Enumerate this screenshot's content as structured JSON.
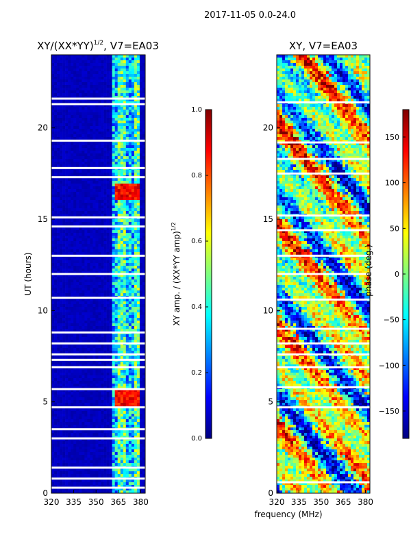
{
  "figure": {
    "suptitle": "2017-11-05 0.0-24.0",
    "xlabel": "frequency (MHz)"
  },
  "colors": {
    "jet": [
      "#000080",
      "#0000ff",
      "#0080ff",
      "#00ffff",
      "#7fff7f",
      "#ffff00",
      "#ff8000",
      "#ff0000",
      "#800000"
    ],
    "background": "#ffffff",
    "axis": "#000000",
    "flag_gap": "#ffffff"
  },
  "chart_data": [
    {
      "type": "heatmap",
      "title_main": "XY/(XX*YY)",
      "title_sup": "1/2",
      "title_rest": ", V7=EA03",
      "ylabel": "UT (hours)",
      "xlim": [
        320,
        383
      ],
      "ylim": [
        0,
        24
      ],
      "xticks": [
        320,
        335,
        350,
        365,
        380
      ],
      "yticks": [
        0,
        5,
        10,
        15,
        20
      ],
      "colorbar": {
        "label": "XY amp. / (XX*YY amp)",
        "label_sup": "1/2",
        "range": [
          0.0,
          1.0
        ],
        "ticks": [
          "0.0",
          "0.2",
          "0.4",
          "0.6",
          "0.8",
          "1.0"
        ]
      },
      "active_band_mhz": [
        360,
        380
      ],
      "hot_spot_hours": [
        16.5,
        5.2
      ],
      "flagged_hours": [
        21.3,
        21.6,
        19.3,
        17.8,
        17.3,
        15.1,
        14.6,
        13.0,
        12.0,
        10.7,
        8.8,
        8.2,
        7.6,
        7.3,
        6.9,
        5.7,
        4.7,
        3.5,
        3.0,
        1.4,
        0.8,
        0.3
      ]
    },
    {
      "type": "heatmap",
      "title_main": "XY, V7=EA03",
      "ylabel": "",
      "xlim": [
        320,
        383
      ],
      "ylim": [
        0,
        24
      ],
      "xticks": [
        320,
        335,
        350,
        365,
        380
      ],
      "yticks": [
        0,
        5,
        10,
        15,
        20
      ],
      "colorbar": {
        "label": "phase (deg.)",
        "range": [
          -180,
          180
        ],
        "ticks": [
          "−150",
          "−100",
          "−50",
          "0",
          "50",
          "100",
          "150"
        ],
        "tick_values": [
          -150,
          -100,
          -50,
          0,
          50,
          100,
          150
        ]
      },
      "flagged_hours": [
        21.4,
        19.2,
        18.3,
        17.5,
        15.2,
        14.4,
        13.0,
        12.0,
        10.6,
        9.0,
        8.2,
        7.6,
        6.9,
        5.8,
        4.7,
        0.6
      ]
    }
  ]
}
